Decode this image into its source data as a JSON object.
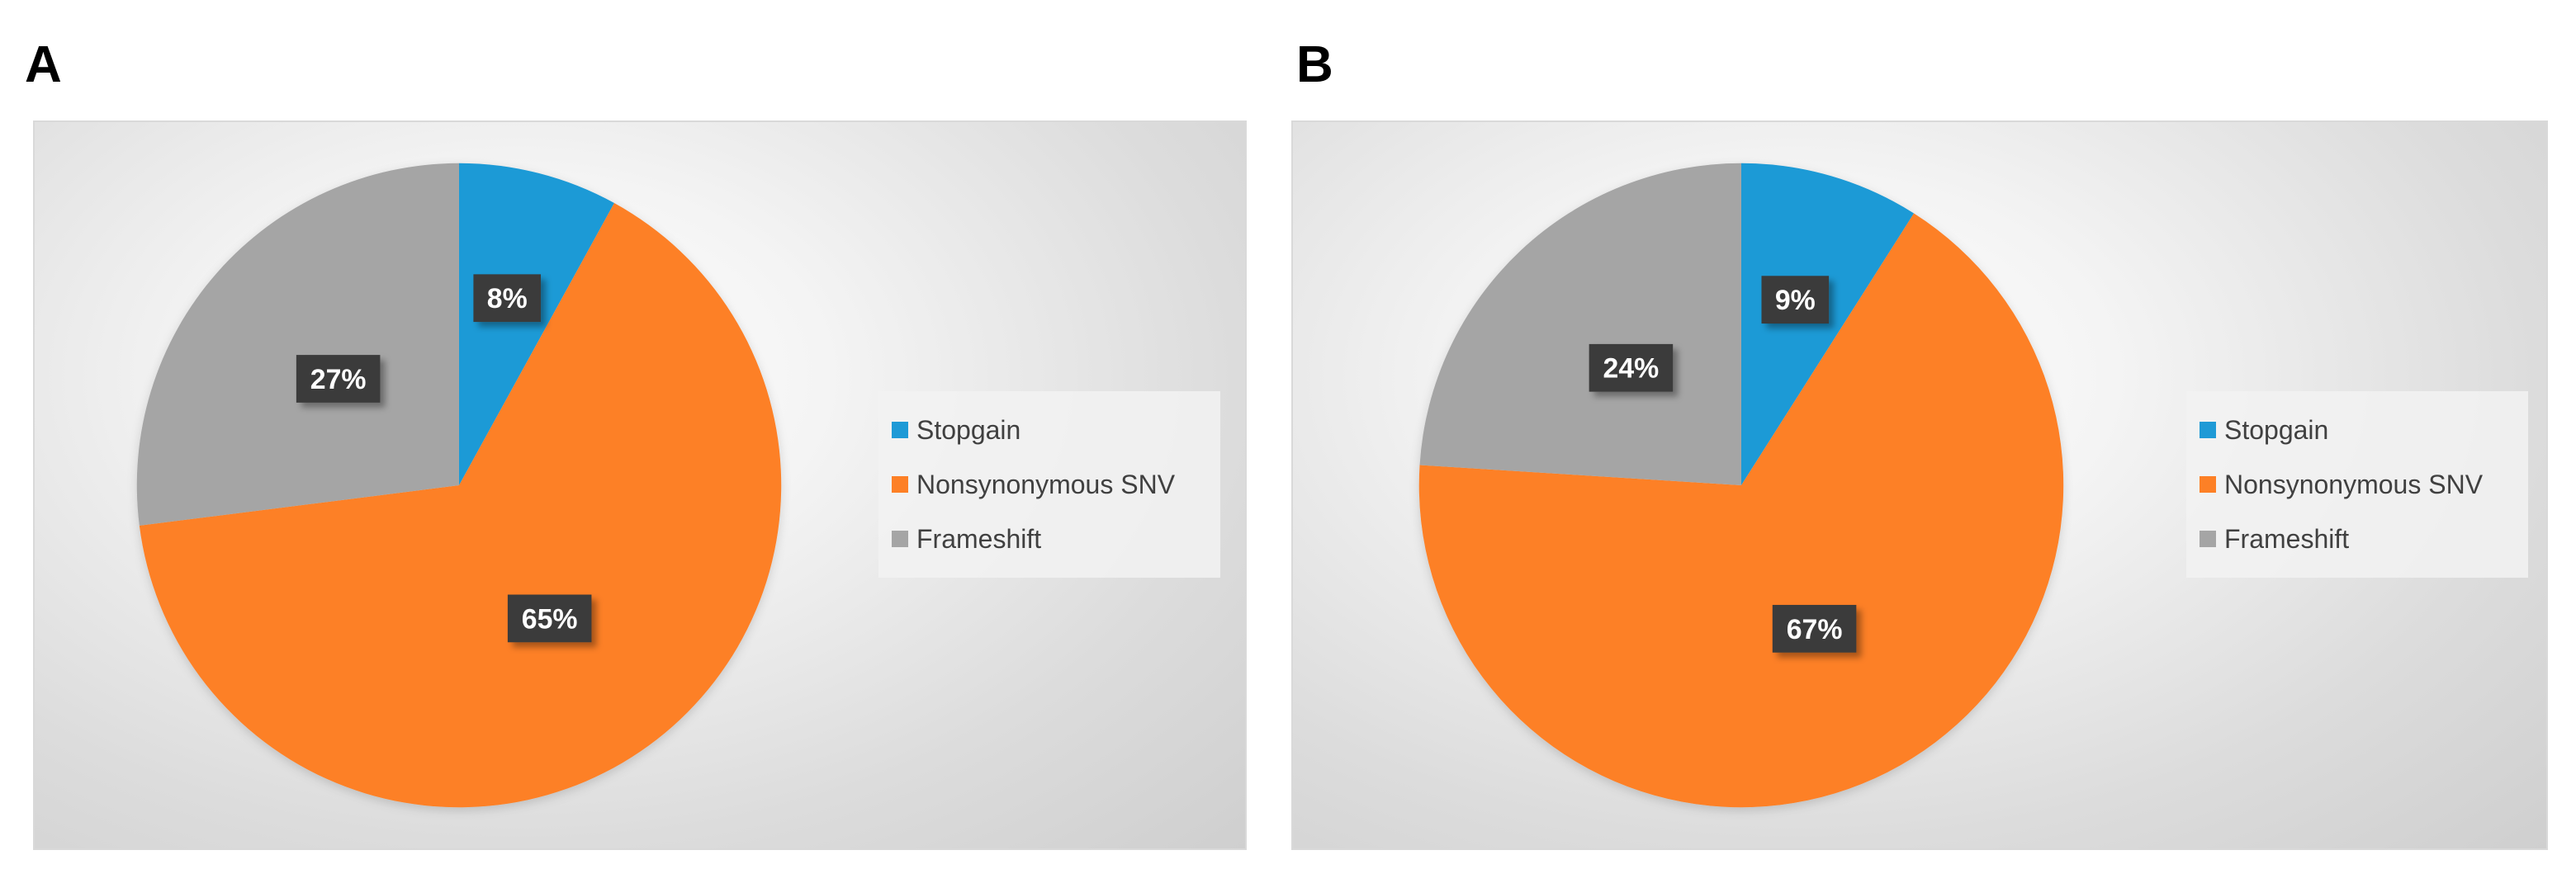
{
  "panels": [
    {
      "letter": "A"
    },
    {
      "letter": "B"
    }
  ],
  "colors": {
    "Stopgain": "#1f9ad6",
    "Nonsynonymous SNV": "#fd8026",
    "Frameshift": "#a5a5a5",
    "label_bg": "#3a3a3a"
  },
  "chart_data": [
    {
      "type": "pie",
      "panel": "A",
      "categories": [
        "Stopgain",
        "Nonsynonymous SNV",
        "Frameshift"
      ],
      "values": [
        8,
        65,
        27
      ],
      "data_labels": [
        "8%",
        "65%",
        "27%"
      ],
      "legend_position": "right"
    },
    {
      "type": "pie",
      "panel": "B",
      "categories": [
        "Stopgain",
        "Nonsynonymous SNV",
        "Frameshift"
      ],
      "values": [
        9,
        67,
        24
      ],
      "data_labels": [
        "9%",
        "67%",
        "24%"
      ],
      "legend_position": "right"
    }
  ]
}
